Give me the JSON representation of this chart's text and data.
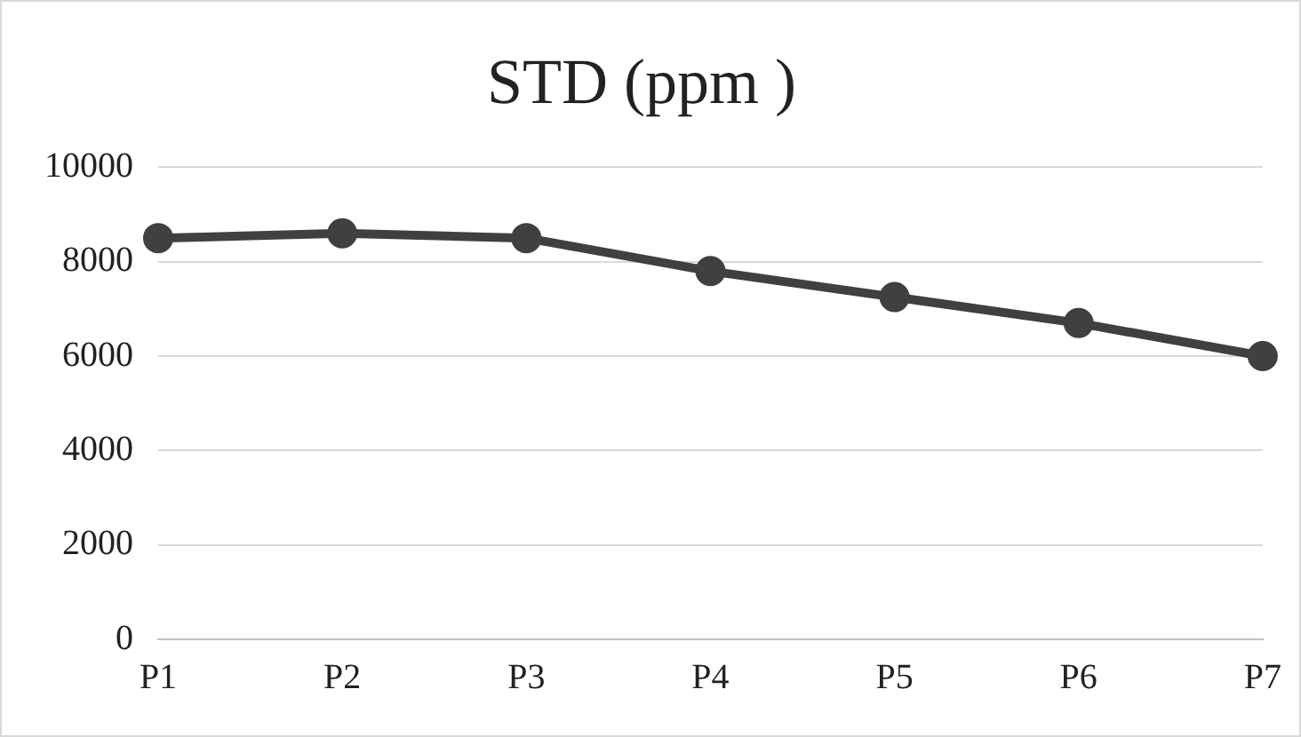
{
  "chart_data": {
    "type": "line",
    "title": "STD (ppm )",
    "categories": [
      "P1",
      "P2",
      "P3",
      "P4",
      "P5",
      "P6",
      "P7"
    ],
    "series": [
      {
        "color": "#404040",
        "values": [
          8500,
          8600,
          8500,
          7800,
          7250,
          6700,
          6000
        ]
      }
    ],
    "ylim": [
      0,
      10000
    ],
    "yticks": [
      0,
      2000,
      4000,
      6000,
      8000,
      10000
    ],
    "grid": "y",
    "legend": false,
    "marker": "circle",
    "line_style": "solid"
  }
}
